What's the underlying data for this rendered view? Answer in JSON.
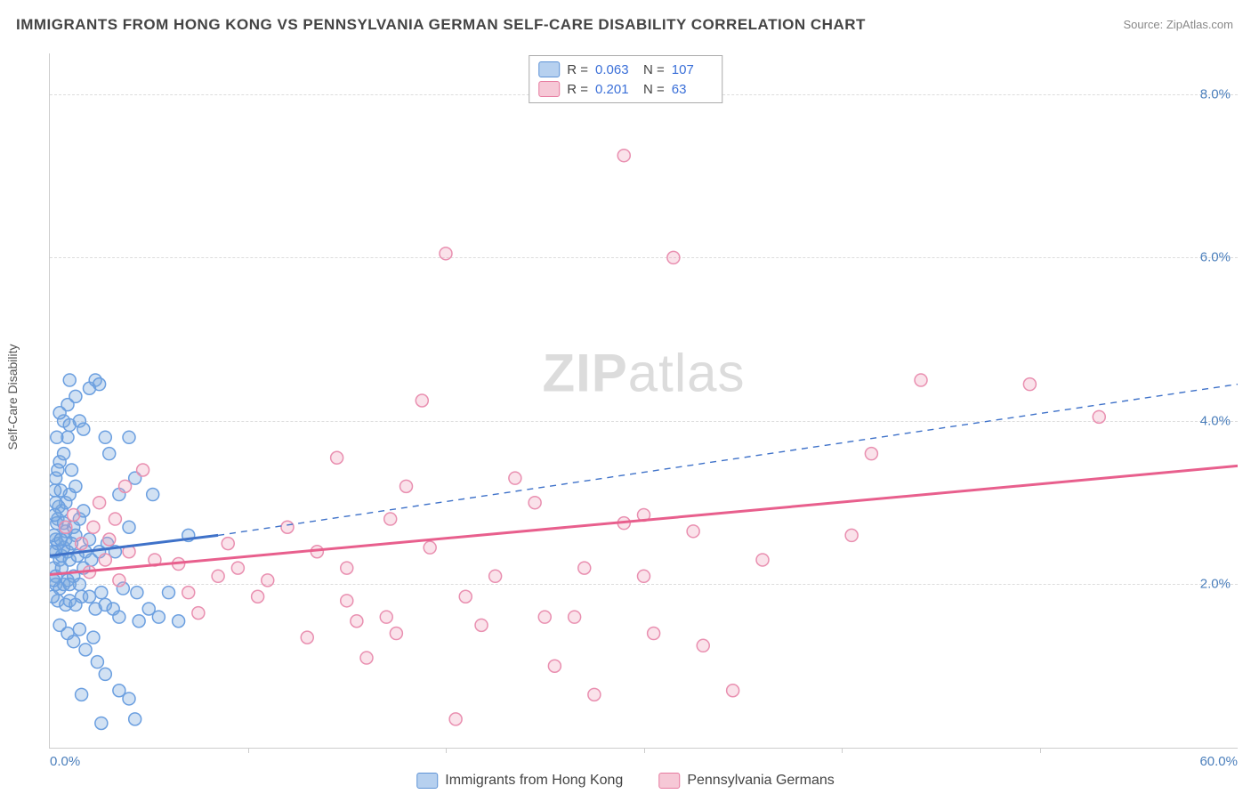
{
  "title": "IMMIGRANTS FROM HONG KONG VS PENNSYLVANIA GERMAN SELF-CARE DISABILITY CORRELATION CHART",
  "source_label": "Source: ",
  "source_value": "ZipAtlas.com",
  "watermark": {
    "bold": "ZIP",
    "rest": "atlas"
  },
  "y_axis_title": "Self-Care Disability",
  "chart": {
    "type": "scatter",
    "xlim": [
      0,
      60
    ],
    "ylim": [
      0,
      8.5
    ],
    "x_ticks_labeled": [
      {
        "v": 0,
        "label": "0.0%"
      },
      {
        "v": 60,
        "label": "60.0%"
      }
    ],
    "x_tick_marks": [
      10,
      20,
      30,
      40,
      50
    ],
    "y_ticks": [
      {
        "v": 2.0,
        "label": "2.0%"
      },
      {
        "v": 4.0,
        "label": "4.0%"
      },
      {
        "v": 6.0,
        "label": "6.0%"
      },
      {
        "v": 8.0,
        "label": "8.0%"
      }
    ],
    "grid_color": "#dddddd",
    "axis_color": "#cccccc",
    "background_color": "#ffffff",
    "marker_radius": 7,
    "marker_stroke_width": 1.5,
    "series": [
      {
        "name": "Immigrants from Hong Kong",
        "color_fill": "rgba(123,168,222,0.35)",
        "color_stroke": "#6b9fe0",
        "swatch_fill": "#b6d0ef",
        "swatch_border": "#5f93d6",
        "R": "0.063",
        "N": "107",
        "trend": {
          "x1": 0,
          "y1": 2.35,
          "x2_solid": 8.5,
          "y2_solid": 2.6,
          "x2_dash": 60,
          "y2_dash": 4.45,
          "color": "#3f72c9",
          "width_solid": 3,
          "width_dash": 1.4
        },
        "points": [
          [
            0.2,
            2.2
          ],
          [
            0.3,
            2.4
          ],
          [
            0.5,
            2.3
          ],
          [
            0.4,
            2.5
          ],
          [
            0.6,
            2.35
          ],
          [
            0.7,
            2.45
          ],
          [
            0.3,
            2.1
          ],
          [
            0.8,
            2.55
          ],
          [
            0.9,
            2.4
          ],
          [
            1.0,
            2.3
          ],
          [
            0.4,
            2.8
          ],
          [
            0.6,
            2.9
          ],
          [
            0.8,
            3.0
          ],
          [
            1.0,
            3.1
          ],
          [
            1.2,
            2.7
          ],
          [
            1.3,
            2.6
          ],
          [
            1.5,
            2.8
          ],
          [
            1.7,
            2.9
          ],
          [
            1.8,
            2.4
          ],
          [
            2.0,
            2.55
          ],
          [
            0.3,
            3.3
          ],
          [
            0.5,
            3.5
          ],
          [
            0.7,
            3.6
          ],
          [
            0.9,
            3.8
          ],
          [
            1.1,
            3.4
          ],
          [
            1.3,
            3.2
          ],
          [
            1.5,
            4.0
          ],
          [
            1.7,
            3.9
          ],
          [
            2.0,
            4.4
          ],
          [
            2.3,
            4.5
          ],
          [
            2.5,
            4.45
          ],
          [
            2.8,
            3.8
          ],
          [
            3.0,
            3.6
          ],
          [
            3.5,
            3.1
          ],
          [
            4.0,
            2.7
          ],
          [
            4.0,
            3.8
          ],
          [
            4.3,
            3.3
          ],
          [
            5.2,
            3.1
          ],
          [
            7.0,
            2.6
          ],
          [
            1.0,
            4.5
          ],
          [
            0.3,
            2.0
          ],
          [
            0.5,
            1.95
          ],
          [
            0.7,
            2.0
          ],
          [
            0.9,
            2.05
          ],
          [
            1.2,
            2.1
          ],
          [
            1.5,
            2.0
          ],
          [
            0.4,
            1.8
          ],
          [
            0.8,
            1.75
          ],
          [
            1.0,
            1.8
          ],
          [
            1.3,
            1.75
          ],
          [
            1.6,
            1.85
          ],
          [
            2.0,
            1.85
          ],
          [
            2.3,
            1.7
          ],
          [
            2.6,
            1.9
          ],
          [
            2.8,
            1.75
          ],
          [
            3.2,
            1.7
          ],
          [
            3.5,
            1.6
          ],
          [
            3.7,
            1.95
          ],
          [
            4.5,
            1.55
          ],
          [
            4.4,
            1.9
          ],
          [
            5.0,
            1.7
          ],
          [
            5.5,
            1.6
          ],
          [
            6.0,
            1.9
          ],
          [
            6.5,
            1.55
          ],
          [
            0.5,
            1.5
          ],
          [
            0.9,
            1.4
          ],
          [
            1.2,
            1.3
          ],
          [
            1.5,
            1.45
          ],
          [
            1.8,
            1.2
          ],
          [
            2.2,
            1.35
          ],
          [
            2.4,
            1.05
          ],
          [
            2.8,
            0.9
          ],
          [
            3.5,
            0.7
          ],
          [
            4.0,
            0.6
          ],
          [
            4.3,
            0.35
          ],
          [
            2.6,
            0.3
          ],
          [
            1.6,
            0.65
          ],
          [
            0.8,
            2.65
          ],
          [
            0.6,
            2.2
          ],
          [
            1.0,
            2.0
          ],
          [
            0.3,
            2.55
          ],
          [
            0.35,
            2.75
          ],
          [
            0.45,
            2.95
          ],
          [
            0.55,
            3.15
          ],
          [
            0.3,
            3.0
          ],
          [
            0.25,
            2.85
          ],
          [
            0.25,
            3.15
          ],
          [
            0.4,
            3.4
          ],
          [
            0.2,
            2.6
          ],
          [
            0.15,
            2.4
          ],
          [
            0.2,
            2.05
          ],
          [
            0.15,
            1.85
          ],
          [
            0.7,
            4.0
          ],
          [
            0.9,
            4.2
          ],
          [
            0.5,
            4.1
          ],
          [
            0.35,
            3.8
          ],
          [
            1.3,
            4.3
          ],
          [
            1.0,
            3.95
          ],
          [
            0.55,
            2.55
          ],
          [
            0.7,
            2.75
          ],
          [
            1.1,
            2.5
          ],
          [
            1.4,
            2.35
          ],
          [
            1.7,
            2.2
          ],
          [
            2.1,
            2.3
          ],
          [
            2.5,
            2.4
          ],
          [
            2.9,
            2.5
          ],
          [
            3.3,
            2.4
          ]
        ]
      },
      {
        "name": "Pennsylvania Germans",
        "color_fill": "rgba(240,160,185,0.30)",
        "color_stroke": "#e98fb0",
        "swatch_fill": "#f6c8d6",
        "swatch_border": "#e77ba0",
        "R": "0.201",
        "N": "63",
        "trend": {
          "x1": 0,
          "y1": 2.12,
          "x2_solid": 60,
          "y2_solid": 3.45,
          "color": "#e85f8d",
          "width_solid": 3
        },
        "points": [
          [
            0.8,
            2.7
          ],
          [
            1.2,
            2.85
          ],
          [
            1.6,
            2.5
          ],
          [
            2.2,
            2.7
          ],
          [
            2.5,
            3.0
          ],
          [
            3.0,
            2.55
          ],
          [
            3.3,
            2.8
          ],
          [
            3.8,
            3.2
          ],
          [
            4.0,
            2.4
          ],
          [
            4.7,
            3.4
          ],
          [
            5.3,
            2.3
          ],
          [
            8.5,
            2.1
          ],
          [
            9.0,
            2.5
          ],
          [
            11.0,
            2.05
          ],
          [
            12.0,
            2.7
          ],
          [
            14.5,
            3.55
          ],
          [
            15.0,
            2.2
          ],
          [
            15.0,
            1.8
          ],
          [
            15.5,
            1.55
          ],
          [
            16.0,
            1.1
          ],
          [
            17.0,
            1.6
          ],
          [
            17.5,
            1.4
          ],
          [
            17.2,
            2.8
          ],
          [
            18.0,
            3.2
          ],
          [
            18.8,
            4.25
          ],
          [
            19.2,
            2.45
          ],
          [
            20.0,
            6.05
          ],
          [
            20.5,
            0.35
          ],
          [
            21.0,
            1.85
          ],
          [
            21.8,
            1.5
          ],
          [
            22.5,
            2.1
          ],
          [
            23.5,
            3.3
          ],
          [
            24.5,
            3.0
          ],
          [
            25.0,
            1.6
          ],
          [
            25.5,
            1.0
          ],
          [
            26.5,
            1.6
          ],
          [
            27.0,
            2.2
          ],
          [
            27.5,
            0.65
          ],
          [
            29.0,
            2.75
          ],
          [
            29.0,
            7.25
          ],
          [
            30.0,
            2.85
          ],
          [
            30.0,
            2.1
          ],
          [
            30.5,
            1.4
          ],
          [
            31.5,
            6.0
          ],
          [
            32.5,
            2.65
          ],
          [
            33.0,
            1.25
          ],
          [
            34.5,
            0.7
          ],
          [
            36.0,
            2.3
          ],
          [
            40.5,
            2.6
          ],
          [
            41.5,
            3.6
          ],
          [
            44.0,
            4.5
          ],
          [
            49.5,
            4.45
          ],
          [
            53.0,
            4.05
          ],
          [
            6.5,
            2.25
          ],
          [
            7.0,
            1.9
          ],
          [
            7.5,
            1.65
          ],
          [
            9.5,
            2.2
          ],
          [
            10.5,
            1.85
          ],
          [
            13.0,
            1.35
          ],
          [
            13.5,
            2.4
          ],
          [
            2.0,
            2.15
          ],
          [
            2.8,
            2.3
          ],
          [
            3.5,
            2.05
          ]
        ]
      }
    ]
  },
  "legend_bottom": [
    {
      "label": "Immigrants from Hong Kong",
      "swatch_fill": "#b6d0ef",
      "swatch_border": "#5f93d6"
    },
    {
      "label": "Pennsylvania Germans",
      "swatch_fill": "#f6c8d6",
      "swatch_border": "#e77ba0"
    }
  ],
  "legend_top_labels": {
    "R": "R =",
    "N": "N ="
  }
}
